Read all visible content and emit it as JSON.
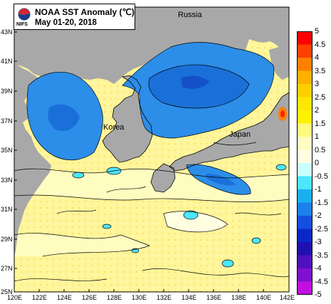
{
  "title": "NOAA SST Anomaly (℃)",
  "subtitle": "May 01-20, 2018",
  "logo_text": "NIFS",
  "places": {
    "russia": "Russia",
    "korea": "Korea",
    "japan": "Japan"
  },
  "lat_labels": [
    "43N",
    "41N",
    "39N",
    "37N",
    "35N",
    "33N",
    "31N",
    "29N",
    "27N",
    "25N"
  ],
  "lon_labels": [
    "120E",
    "122E",
    "124E",
    "126E",
    "128E",
    "130E",
    "132E",
    "134E",
    "136E",
    "138E",
    "140E",
    "142E"
  ],
  "colorbar": {
    "labels": [
      "5",
      "4.5",
      "4",
      "3.5",
      "3",
      "2.5",
      "2",
      "1.5",
      "1",
      "0.5",
      "0",
      "-0.5",
      "-1",
      "-1.5",
      "-2",
      "-2.5",
      "-3",
      "-3.5",
      "-4",
      "-4.5",
      "-5"
    ],
    "colors": [
      "#ff0000",
      "#ff4000",
      "#ff8000",
      "#ffb000",
      "#ffd000",
      "#ffe800",
      "#fff200",
      "#fffa80",
      "#fffcc0",
      "#fffee0",
      "#c8ffff",
      "#4ce6ff",
      "#1ab0f0",
      "#1a80ea",
      "#1450e0",
      "#0a28c8",
      "#2010b0",
      "#5010c0",
      "#8010d0",
      "#c010e0"
    ]
  },
  "colors": {
    "land": "#a8a8a8",
    "warm": "#fff59a",
    "cool": "#2c8ee8",
    "contour": "#000000"
  }
}
